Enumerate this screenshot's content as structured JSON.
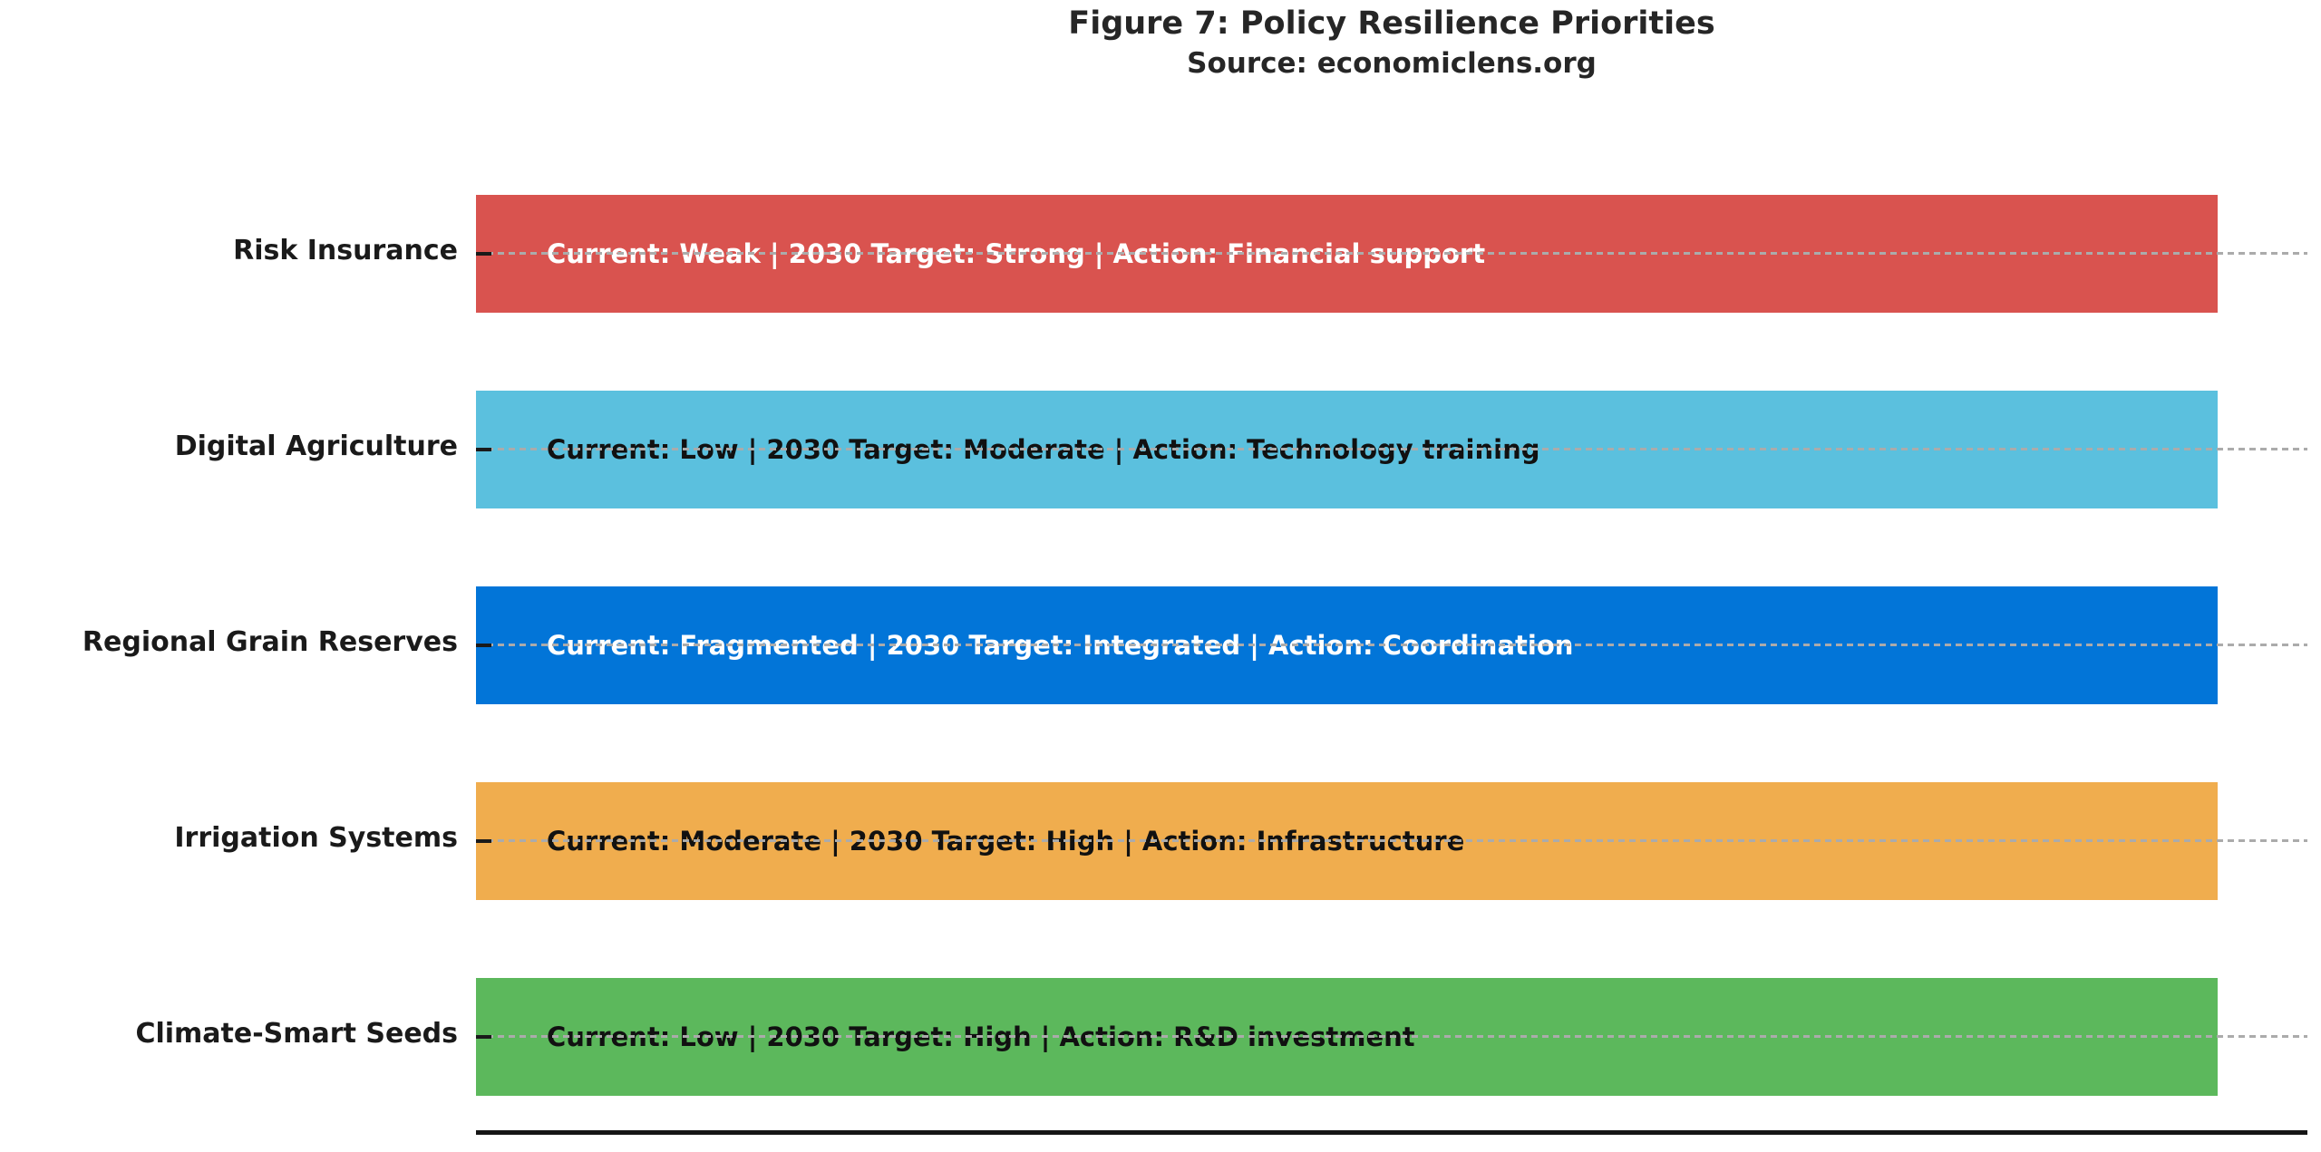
{
  "title": "Figure 7: Policy Resilience Priorities",
  "subtitle": "Source: economiclens.org",
  "chart_data": {
    "type": "bar",
    "orientation": "horizontal",
    "title": "Figure 7: Policy Resilience Priorities",
    "subtitle": "Source: economiclens.org",
    "grid": "horizontal dashed gridlines through each bar center",
    "legend_position": "none",
    "x_axis": {
      "visible_ticks": false,
      "bottom_axis_line": true
    },
    "categories": [
      "Risk Insurance",
      "Digital Agriculture",
      "Regional Grain Reserves",
      "Irrigation Systems",
      "Climate-Smart Seeds"
    ],
    "values": [
      1,
      1,
      1,
      1,
      1
    ],
    "bars": [
      {
        "category": "Risk Insurance",
        "current": "Weak",
        "target_2030": "Strong",
        "action": "Financial support",
        "bar_text": "Current: Weak  |  2030 Target: Strong  |  Action: Financial support",
        "color": "#d9534f",
        "text_color": "#ffffff"
      },
      {
        "category": "Digital Agriculture",
        "current": "Low",
        "target_2030": "Moderate",
        "action": "Technology training",
        "bar_text": "Current: Low  |  2030 Target: Moderate  |  Action: Technology training",
        "color": "#5bc0de",
        "text_color": "#111111"
      },
      {
        "category": "Regional Grain Reserves",
        "current": "Fragmented",
        "target_2030": "Integrated",
        "action": "Coordination",
        "bar_text": "Current: Fragmented  |  2030 Target: Integrated  |  Action: Coordination",
        "color": "#0275d8",
        "text_color": "#ffffff"
      },
      {
        "category": "Irrigation Systems",
        "current": "Moderate",
        "target_2030": "High",
        "action": "Infrastructure",
        "bar_text": "Current: Moderate  |  2030 Target: High  |  Action: Infrastructure",
        "color": "#f0ad4e",
        "text_color": "#111111"
      },
      {
        "category": "Climate-Smart Seeds",
        "current": "Low",
        "target_2030": "High",
        "action": "R&D investment",
        "bar_text": "Current: Low  |  2030 Target: High  |  Action: R&D investment",
        "color": "#5cb85c",
        "text_color": "#111111"
      }
    ],
    "axis_colors": {
      "gridline": "#ababab",
      "axis_line": "#151515",
      "tick": "#1a1a1a"
    }
  }
}
